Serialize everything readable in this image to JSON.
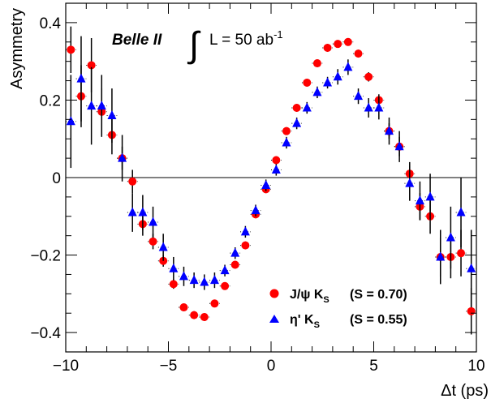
{
  "chart_data": {
    "type": "scatter",
    "xlabel": "Δt (ps)",
    "ylabel": "Asymmetry",
    "xlim": [
      -10,
      10
    ],
    "ylim": [
      -0.45,
      0.45
    ],
    "x_ticks": [
      -10,
      -5,
      0,
      5,
      10
    ],
    "y_ticks": [
      -0.4,
      -0.2,
      0,
      0.2,
      0.4
    ],
    "x_tick_labels": [
      "−10",
      "−5",
      "0",
      "5",
      "10"
    ],
    "y_tick_labels": [
      "−0.4",
      "−0.2",
      "0",
      "0.2",
      "0.4"
    ],
    "grid": false,
    "zero_line": true,
    "legend_position": "bottom-right",
    "banner": {
      "experiment": "Belle II",
      "integral_sign": "∫",
      "lumi_text": "L = 50 ab",
      "lumi_exponent": "-1"
    },
    "series": [
      {
        "name": "J/ψ K_S (S = 0.70)",
        "legend_main": "J/ψ K",
        "legend_sub": "S",
        "legend_value": "(S = 0.70)",
        "marker": "circle",
        "color": "#ff0000",
        "points": [
          {
            "x": -9.75,
            "y": 0.33,
            "err": 0.06
          },
          {
            "x": -9.25,
            "y": 0.21,
            "err": 0.08
          },
          {
            "x": -8.75,
            "y": 0.29,
            "err": 0.07
          },
          {
            "x": -8.25,
            "y": 0.17,
            "err": 0.06
          },
          {
            "x": -7.75,
            "y": 0.11,
            "err": 0.05
          },
          {
            "x": -7.25,
            "y": 0.05,
            "err": 0.03
          },
          {
            "x": -6.75,
            "y": -0.01,
            "err": 0.03
          },
          {
            "x": -6.25,
            "y": -0.12,
            "err": 0.03
          },
          {
            "x": -5.75,
            "y": -0.165,
            "err": 0.02
          },
          {
            "x": -5.25,
            "y": -0.215,
            "err": 0.015
          },
          {
            "x": -4.75,
            "y": -0.275,
            "err": 0.012
          },
          {
            "x": -4.25,
            "y": -0.335,
            "err": 0.01
          },
          {
            "x": -3.75,
            "y": -0.355,
            "err": 0.01
          },
          {
            "x": -3.25,
            "y": -0.36,
            "err": 0.01
          },
          {
            "x": -2.75,
            "y": -0.325,
            "err": 0.01
          },
          {
            "x": -2.25,
            "y": -0.28,
            "err": 0.01
          },
          {
            "x": -1.75,
            "y": -0.225,
            "err": 0.01
          },
          {
            "x": -1.25,
            "y": -0.175,
            "err": 0.01
          },
          {
            "x": -0.75,
            "y": -0.095,
            "err": 0.01
          },
          {
            "x": -0.25,
            "y": -0.03,
            "err": 0.01
          },
          {
            "x": 0.25,
            "y": 0.045,
            "err": 0.01
          },
          {
            "x": 0.75,
            "y": 0.12,
            "err": 0.01
          },
          {
            "x": 1.25,
            "y": 0.18,
            "err": 0.01
          },
          {
            "x": 1.75,
            "y": 0.245,
            "err": 0.01
          },
          {
            "x": 2.25,
            "y": 0.295,
            "err": 0.01
          },
          {
            "x": 2.75,
            "y": 0.335,
            "err": 0.01
          },
          {
            "x": 3.25,
            "y": 0.345,
            "err": 0.01
          },
          {
            "x": 3.75,
            "y": 0.35,
            "err": 0.01
          },
          {
            "x": 4.25,
            "y": 0.32,
            "err": 0.01
          },
          {
            "x": 4.75,
            "y": 0.26,
            "err": 0.012
          },
          {
            "x": 5.25,
            "y": 0.2,
            "err": 0.015
          },
          {
            "x": 5.75,
            "y": 0.12,
            "err": 0.02
          },
          {
            "x": 6.25,
            "y": 0.08,
            "err": 0.025
          },
          {
            "x": 6.75,
            "y": 0.01,
            "err": 0.03
          },
          {
            "x": 7.25,
            "y": -0.075,
            "err": 0.035
          },
          {
            "x": 7.75,
            "y": -0.1,
            "err": 0.045
          },
          {
            "x": 8.25,
            "y": -0.205,
            "err": 0.05
          },
          {
            "x": 8.75,
            "y": -0.205,
            "err": 0.055
          },
          {
            "x": 9.25,
            "y": -0.195,
            "err": 0.06
          },
          {
            "x": 9.75,
            "y": -0.345,
            "err": 0.06
          }
        ]
      },
      {
        "name": "η' K_S (S = 0.55)",
        "legend_main": "η' K",
        "legend_sub": "S",
        "legend_value": "(S = 0.55)",
        "marker": "triangle",
        "color": "#0000ff",
        "points": [
          {
            "x": -9.75,
            "y": 0.145,
            "err": 0.12
          },
          {
            "x": -9.25,
            "y": 0.255,
            "err": 0.11
          },
          {
            "x": -8.75,
            "y": 0.185,
            "err": 0.1
          },
          {
            "x": -8.25,
            "y": 0.185,
            "err": 0.08
          },
          {
            "x": -7.75,
            "y": 0.16,
            "err": 0.07
          },
          {
            "x": -7.25,
            "y": 0.05,
            "err": 0.06
          },
          {
            "x": -6.75,
            "y": -0.09,
            "err": 0.05
          },
          {
            "x": -6.25,
            "y": -0.09,
            "err": 0.045
          },
          {
            "x": -5.75,
            "y": -0.115,
            "err": 0.04
          },
          {
            "x": -5.25,
            "y": -0.18,
            "err": 0.035
          },
          {
            "x": -4.75,
            "y": -0.235,
            "err": 0.03
          },
          {
            "x": -4.25,
            "y": -0.255,
            "err": 0.025
          },
          {
            "x": -3.75,
            "y": -0.265,
            "err": 0.02
          },
          {
            "x": -3.25,
            "y": -0.27,
            "err": 0.02
          },
          {
            "x": -2.75,
            "y": -0.265,
            "err": 0.02
          },
          {
            "x": -2.25,
            "y": -0.24,
            "err": 0.015
          },
          {
            "x": -1.75,
            "y": -0.195,
            "err": 0.015
          },
          {
            "x": -1.25,
            "y": -0.14,
            "err": 0.015
          },
          {
            "x": -0.75,
            "y": -0.085,
            "err": 0.015
          },
          {
            "x": -0.25,
            "y": -0.02,
            "err": 0.015
          },
          {
            "x": 0.25,
            "y": 0.02,
            "err": 0.015
          },
          {
            "x": 0.75,
            "y": 0.09,
            "err": 0.015
          },
          {
            "x": 1.25,
            "y": 0.14,
            "err": 0.015
          },
          {
            "x": 1.75,
            "y": 0.18,
            "err": 0.015
          },
          {
            "x": 2.25,
            "y": 0.22,
            "err": 0.015
          },
          {
            "x": 2.75,
            "y": 0.245,
            "err": 0.015
          },
          {
            "x": 3.25,
            "y": 0.26,
            "err": 0.02
          },
          {
            "x": 3.75,
            "y": 0.285,
            "err": 0.02
          },
          {
            "x": 4.25,
            "y": 0.21,
            "err": 0.02
          },
          {
            "x": 4.75,
            "y": 0.18,
            "err": 0.025
          },
          {
            "x": 5.25,
            "y": 0.18,
            "err": 0.03
          },
          {
            "x": 5.75,
            "y": 0.12,
            "err": 0.035
          },
          {
            "x": 6.25,
            "y": 0.08,
            "err": 0.04
          },
          {
            "x": 6.75,
            "y": -0.015,
            "err": 0.045
          },
          {
            "x": 7.25,
            "y": -0.06,
            "err": 0.05
          },
          {
            "x": 7.75,
            "y": -0.05,
            "err": 0.06
          },
          {
            "x": 8.25,
            "y": -0.205,
            "err": 0.07
          },
          {
            "x": 8.75,
            "y": -0.155,
            "err": 0.08
          },
          {
            "x": 9.25,
            "y": -0.09,
            "err": 0.09
          },
          {
            "x": 9.75,
            "y": -0.235,
            "err": 0.1
          }
        ]
      }
    ]
  }
}
